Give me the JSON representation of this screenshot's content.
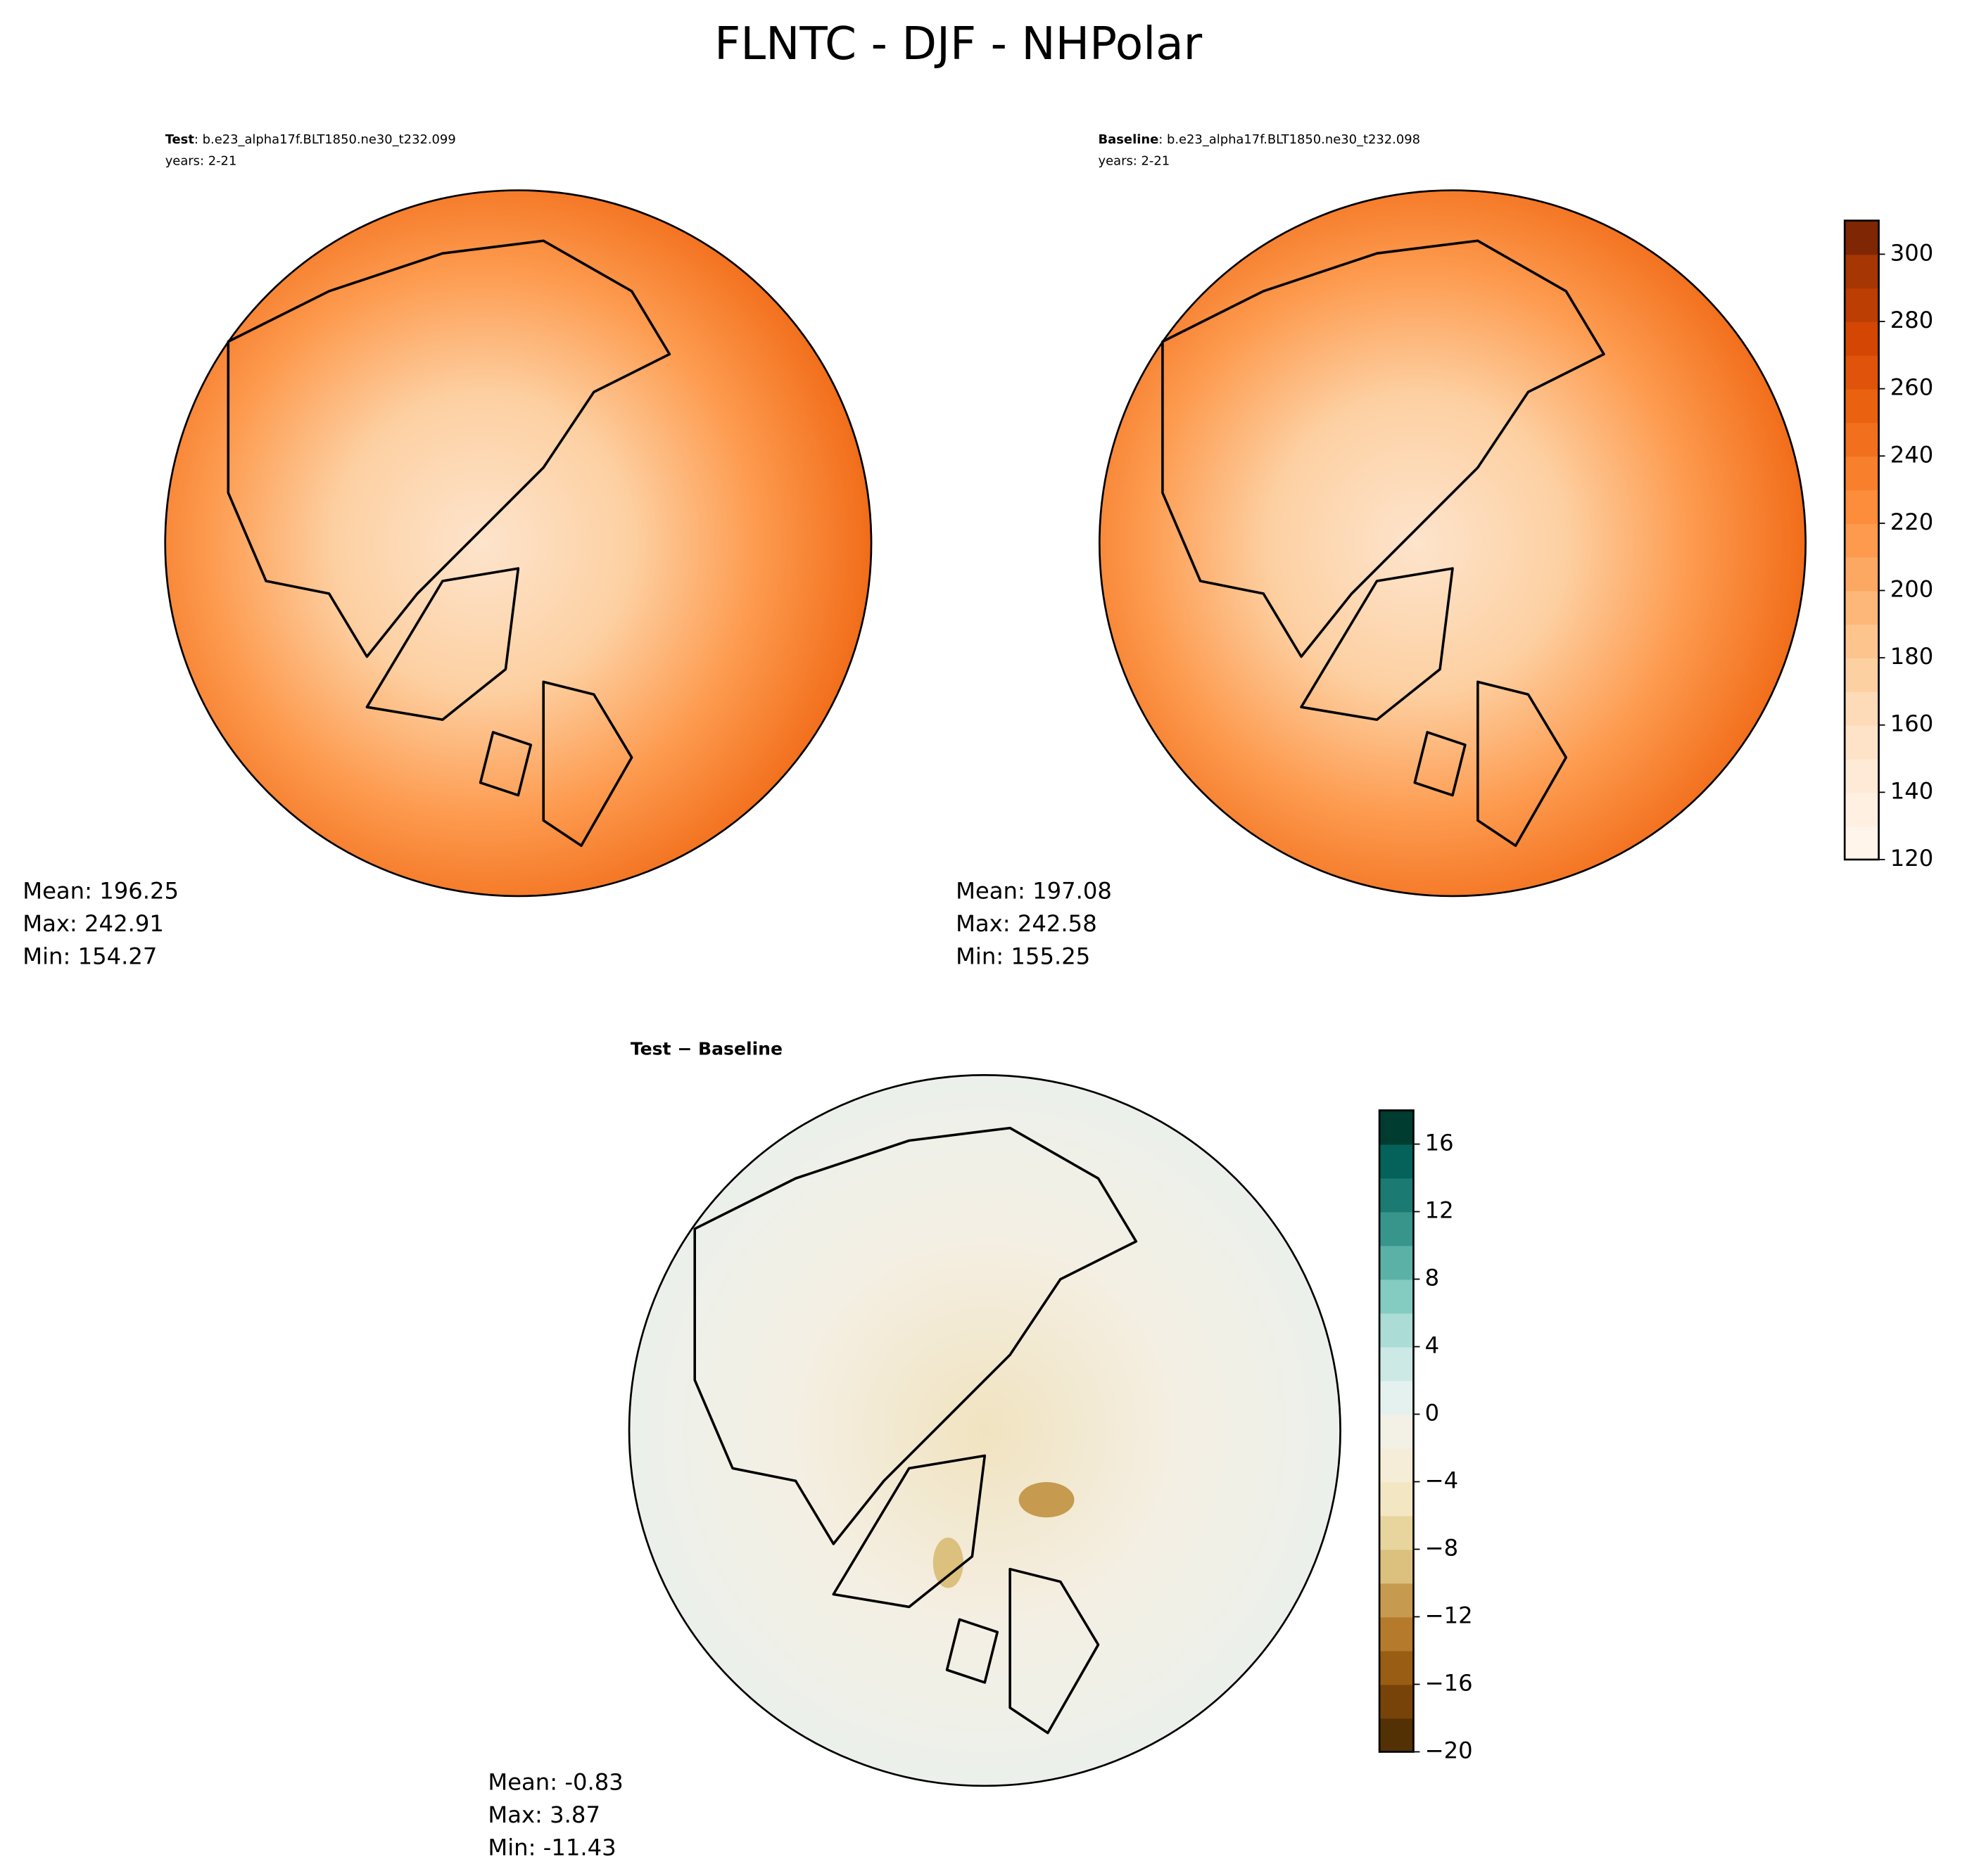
{
  "title": "FLNTC - DJF - NHPolar",
  "chart_data": [
    {
      "type": "contour-map",
      "label": "Test",
      "name": ": b.e23_alpha17f.BLT1850.ne30_t232.099",
      "subtitle": "years: 2-21",
      "stats": [
        "Mean: 196.25",
        "Max: 242.91",
        "Min: 154.27"
      ]
    },
    {
      "type": "contour-map",
      "label": "Baseline",
      "name": ": b.e23_alpha17f.BLT1850.ne30_t232.098",
      "subtitle": "years: 2-21",
      "stats": [
        "Mean: 197.08",
        "Max: 242.58",
        "Min: 155.25"
      ],
      "colorbar": {
        "lim": [
          120,
          310
        ],
        "ticks": [
          120,
          140,
          160,
          180,
          200,
          220,
          240,
          260,
          280,
          300
        ],
        "colors": [
          "#fff5eb",
          "#fff0e1",
          "#feead6",
          "#fee3c9",
          "#fddbb8",
          "#fdd0a2",
          "#fdc48e",
          "#fdb779",
          "#fda862",
          "#fd9a4e",
          "#fd8c3b",
          "#f87f2c",
          "#f2701d",
          "#ea6110",
          "#e0530a",
          "#d44604",
          "#bd3e02",
          "#a63603",
          "#7f2704"
        ]
      }
    },
    {
      "type": "contour-map",
      "label": "Test − Baseline",
      "stats": [
        "Mean: -0.83",
        "Max:  3.87",
        "Min: -11.43"
      ],
      "colorbar": {
        "lim": [
          -20,
          18
        ],
        "ticks": [
          {
            "value": -20,
            "label": "−20"
          },
          {
            "value": -16,
            "label": "−16"
          },
          {
            "value": -12,
            "label": "−12"
          },
          {
            "value": -8,
            "label": "−8"
          },
          {
            "value": -4,
            "label": "−4"
          },
          0,
          4,
          8,
          12,
          16
        ],
        "colors": [
          "#543005",
          "#784309",
          "#995d13",
          "#b57a2c",
          "#c69a4f",
          "#dbc07e",
          "#e8d59e",
          "#f3e7c3",
          "#f5edd7",
          "#f3f0e6",
          "#e4f1ef",
          "#cce9e5",
          "#abdcd5",
          "#84cbc1",
          "#5cb1a7",
          "#38958c",
          "#1b7a71",
          "#05625a",
          "#003c30"
        ]
      }
    }
  ]
}
